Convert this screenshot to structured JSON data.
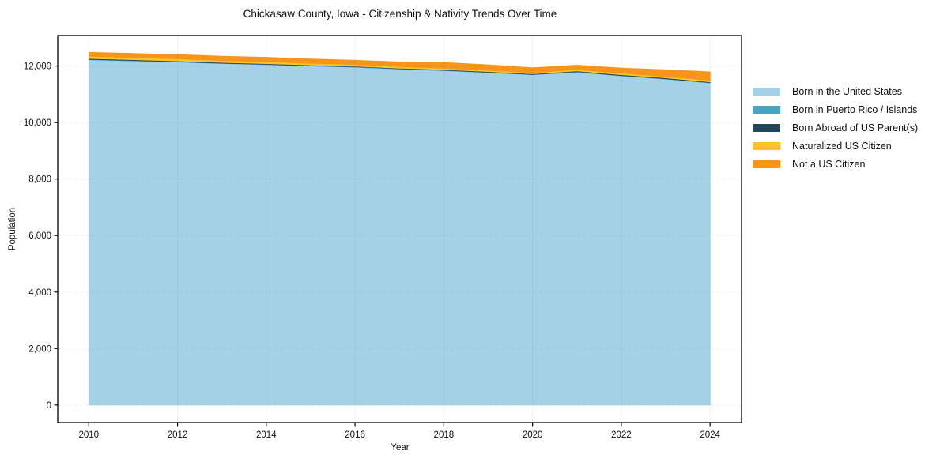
{
  "page": {
    "background_color": "#ffffff",
    "text_color": "#111111"
  },
  "chart_data": {
    "type": "area",
    "stacked": true,
    "title": "Chickasaw County, Iowa - Citizenship & Nativity Trends Over Time",
    "xlabel": "Year",
    "ylabel": "Population",
    "x": [
      2010,
      2011,
      2012,
      2013,
      2014,
      2015,
      2016,
      2017,
      2018,
      2019,
      2020,
      2021,
      2022,
      2023,
      2024
    ],
    "series": [
      {
        "name": "Born in the United States",
        "color": "#a5d1e7",
        "values": [
          12220,
          12180,
          12140,
          12090,
          12050,
          12000,
          11960,
          11890,
          11840,
          11770,
          11690,
          11780,
          11650,
          11540,
          11400
        ]
      },
      {
        "name": "Born in Puerto Rico / Islands",
        "color": "#46a5c0",
        "values": [
          15,
          15,
          10,
          10,
          10,
          10,
          15,
          15,
          10,
          10,
          15,
          20,
          15,
          10,
          15
        ]
      },
      {
        "name": "Born Abroad of US Parent(s)",
        "color": "#24465a",
        "values": [
          30,
          30,
          30,
          25,
          25,
          25,
          20,
          20,
          25,
          25,
          20,
          25,
          30,
          30,
          25
        ]
      },
      {
        "name": "Naturalized US Citizen",
        "color": "#fcc32c",
        "values": [
          80,
          75,
          75,
          70,
          65,
          60,
          60,
          55,
          50,
          45,
          45,
          50,
          50,
          50,
          55
        ]
      },
      {
        "name": "Not a US Citizen",
        "color": "#f6941e",
        "values": [
          140,
          145,
          150,
          155,
          160,
          155,
          150,
          165,
          200,
          195,
          170,
          160,
          185,
          240,
          300
        ]
      }
    ],
    "xlim": [
      2009.3,
      2024.71
    ],
    "ylim": [
      -620,
      13080
    ],
    "xticks": [
      2010,
      2012,
      2014,
      2016,
      2018,
      2020,
      2022,
      2024
    ],
    "yticks": [
      0,
      2000,
      4000,
      6000,
      8000,
      10000,
      12000
    ],
    "ytick_labels": [
      "0",
      "2,000",
      "4,000",
      "6,000",
      "8,000",
      "10,000",
      "12,000"
    ],
    "grid": true,
    "grid_color": "#000000",
    "grid_opacity": 0.055,
    "axis_color": "#000000",
    "legend_position": "right"
  }
}
